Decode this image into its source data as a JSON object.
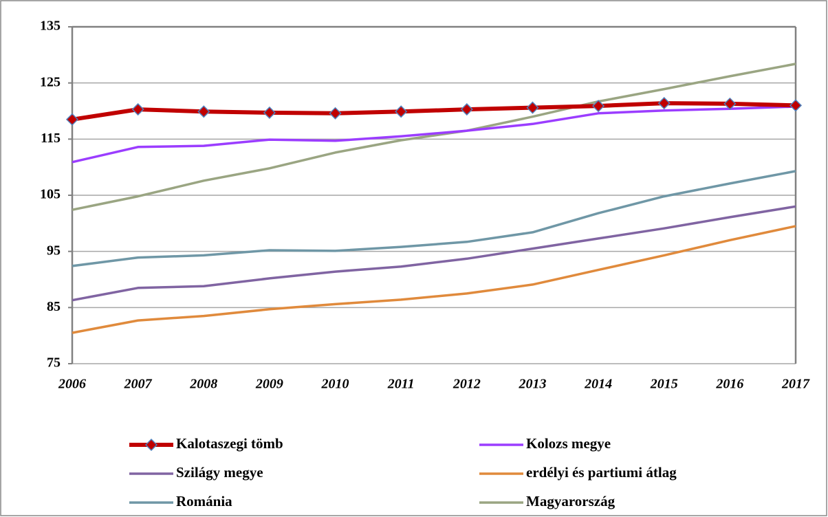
{
  "chart_data": {
    "type": "line",
    "categories": [
      "2006",
      "2007",
      "2008",
      "2009",
      "2010",
      "2011",
      "2012",
      "2013",
      "2014",
      "2015",
      "2016",
      "2017"
    ],
    "series": [
      {
        "name": "Kalotaszegi tömb",
        "color": "#c00000",
        "marker": "diamond",
        "values": [
          118.5,
          120.3,
          119.9,
          119.7,
          119.6,
          119.9,
          120.3,
          120.6,
          120.9,
          121.4,
          121.3,
          121.0
        ]
      },
      {
        "name": "Kolozs megye",
        "color": "#9b3dff",
        "values": [
          110.9,
          113.6,
          113.8,
          114.9,
          114.7,
          115.5,
          116.5,
          117.7,
          119.6,
          120.1,
          120.4,
          120.8
        ]
      },
      {
        "name": "Szilágy megye",
        "color": "#8064a2",
        "values": [
          86.3,
          88.5,
          88.8,
          90.2,
          91.4,
          92.3,
          93.7,
          95.5,
          97.3,
          99.1,
          101.1,
          103.0
        ]
      },
      {
        "name": "erdélyi és partiumi átlag",
        "color": "#e08a3c",
        "values": [
          80.5,
          82.7,
          83.5,
          84.7,
          85.6,
          86.4,
          87.5,
          89.1,
          91.7,
          94.3,
          97.0,
          99.5
        ]
      },
      {
        "name": "Románia",
        "color": "#6f97a6",
        "values": [
          92.4,
          93.9,
          94.3,
          95.2,
          95.1,
          95.8,
          96.7,
          98.4,
          101.8,
          104.8,
          107.1,
          109.3
        ]
      },
      {
        "name": "Magyarország",
        "color": "#9aa582",
        "values": [
          102.4,
          104.8,
          107.6,
          109.8,
          112.6,
          114.8,
          116.5,
          119.0,
          121.7,
          123.9,
          126.2,
          128.4
        ]
      }
    ],
    "ylim": [
      75,
      135
    ],
    "yticks": [
      75,
      85,
      95,
      105,
      115,
      125,
      135
    ],
    "grid": true,
    "legend": "bottom"
  }
}
